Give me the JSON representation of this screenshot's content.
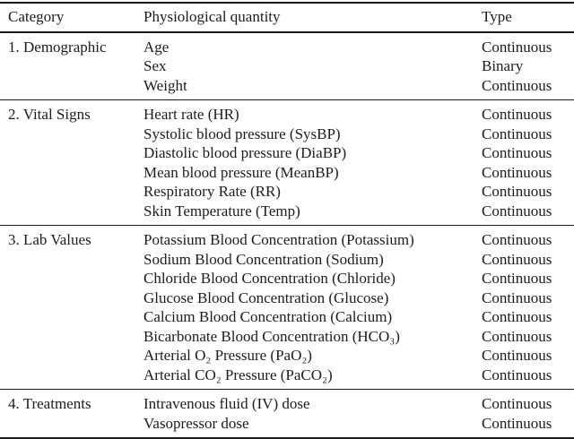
{
  "table": {
    "columns": {
      "category": "Category",
      "quantity": "Physiological quantity",
      "type": "Type"
    },
    "sections": [
      {
        "category": "1. Demographic",
        "rows": [
          {
            "quantity": "Age",
            "type": "Continuous"
          },
          {
            "quantity": "Sex",
            "type": "Binary"
          },
          {
            "quantity": "Weight",
            "type": "Continuous"
          }
        ]
      },
      {
        "category": "2. Vital Signs",
        "rows": [
          {
            "quantity": "Heart rate (HR)",
            "type": "Continuous"
          },
          {
            "quantity": "Systolic blood pressure (SysBP)",
            "type": "Continuous"
          },
          {
            "quantity": "Diastolic blood pressure (DiaBP)",
            "type": "Continuous"
          },
          {
            "quantity": "Mean blood pressure (MeanBP)",
            "type": "Continuous"
          },
          {
            "quantity": "Respiratory Rate (RR)",
            "type": "Continuous"
          },
          {
            "quantity": "Skin Temperature (Temp)",
            "type": "Continuous"
          }
        ]
      },
      {
        "category": "3. Lab Values",
        "rows": [
          {
            "quantity": "Potassium Blood Concentration (Potassium)",
            "type": "Continuous"
          },
          {
            "quantity": "Sodium Blood Concentration (Sodium)",
            "type": "Continuous"
          },
          {
            "quantity": "Chloride Blood Concentration (Chloride)",
            "type": "Continuous"
          },
          {
            "quantity": "Glucose Blood Concentration (Glucose)",
            "type": "Continuous"
          },
          {
            "quantity": "Calcium Blood Concentration (Calcium)",
            "type": "Continuous"
          },
          {
            "quantity": "Bicarbonate Blood Concentration (HCO₃)",
            "type": "Continuous"
          },
          {
            "quantity": "Arterial O₂ Pressure (PaO₂)",
            "type": "Continuous"
          },
          {
            "quantity": "Arterial CO₂ Pressure (PaCO₂)",
            "type": "Continuous"
          }
        ]
      },
      {
        "category": "4. Treatments",
        "rows": [
          {
            "quantity": "Intravenous fluid (IV) dose",
            "type": "Continuous"
          },
          {
            "quantity": "Vasopressor dose",
            "type": "Continuous"
          }
        ]
      }
    ],
    "colors": {
      "rule": "#1a1a1a",
      "text": "#1c1c1c",
      "background": "#ffffff"
    }
  }
}
